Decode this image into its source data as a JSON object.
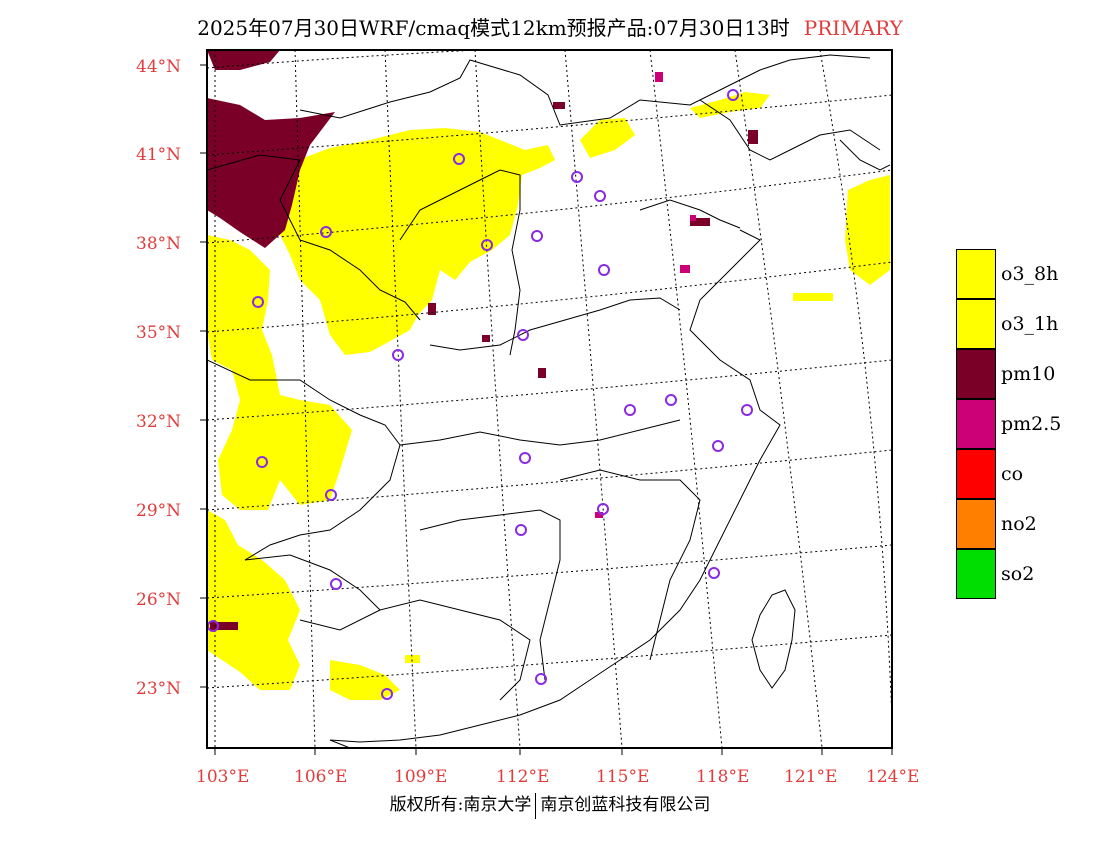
{
  "title": {
    "main": "2025年07月30日WRF/cmaq模式12km预报产品:07月30日13时",
    "tag": "PRIMARY"
  },
  "map": {
    "lat_labels": [
      "44°N",
      "41°N",
      "38°N",
      "35°N",
      "32°N",
      "29°N",
      "26°N",
      "23°N"
    ],
    "lon_labels": [
      "103°E",
      "106°E",
      "109°E",
      "112°E",
      "115°E",
      "118°E",
      "121°E",
      "124°E"
    ],
    "colors": {
      "o3_8h": "#ffff00",
      "o3_1h": "#ffff00",
      "pm10": "#7a0028",
      "pm2_5": "#cc0077",
      "co": "#ff0000",
      "no2": "#ff7f00",
      "so2": "#00dd00",
      "city_marker": "#8a2be2",
      "axis_label": "#e03c3c"
    }
  },
  "legend": [
    {
      "label": "o3_8h",
      "color": "#ffff00"
    },
    {
      "label": "o3_1h",
      "color": "#ffff00"
    },
    {
      "label": "pm10",
      "color": "#7a0028"
    },
    {
      "label": "pm2.5",
      "color": "#cc0077"
    },
    {
      "label": "co",
      "color": "#ff0000"
    },
    {
      "label": "no2",
      "color": "#ff7f00"
    },
    {
      "label": "so2",
      "color": "#00dd00"
    }
  ],
  "footer": {
    "left": "版权所有:南京大学",
    "right": "南京创蓝科技有限公司"
  }
}
